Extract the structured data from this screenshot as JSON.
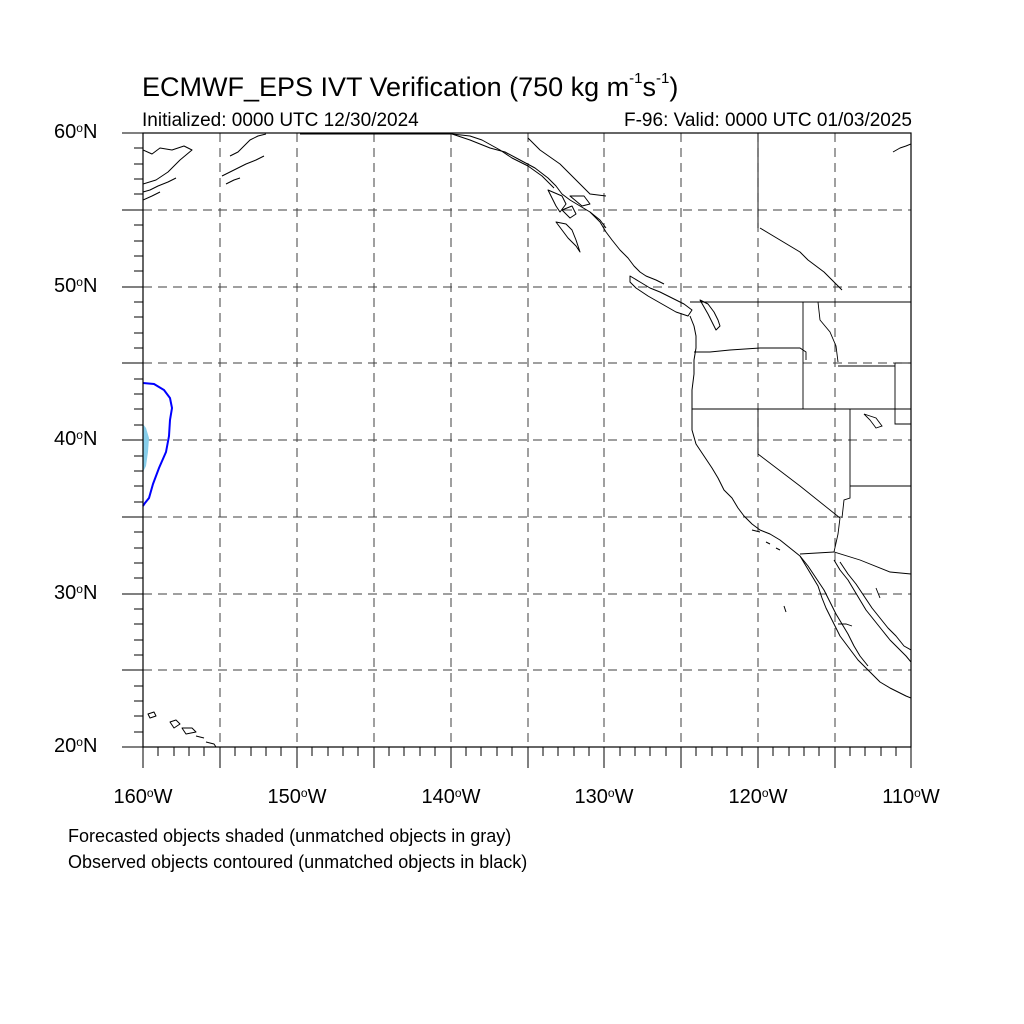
{
  "title": {
    "main": "ECMWF_EPS IVT Verification (750 kg m",
    "sup1": "-1",
    "mid": "s",
    "sup2": "-1",
    "end": ")"
  },
  "initialized": "Initialized: 0000 UTC 12/30/2024",
  "valid": "F-96: Valid: 0000 UTC 01/03/2025",
  "lat_labels": [
    {
      "num": "60",
      "deg": "o",
      "hem": "N"
    },
    {
      "num": "50",
      "deg": "o",
      "hem": "N"
    },
    {
      "num": "40",
      "deg": "o",
      "hem": "N"
    },
    {
      "num": "30",
      "deg": "o",
      "hem": "N"
    },
    {
      "num": "20",
      "deg": "o",
      "hem": "N"
    }
  ],
  "lon_labels": [
    {
      "num": "160",
      "deg": "o",
      "hem": "W"
    },
    {
      "num": "150",
      "deg": "o",
      "hem": "W"
    },
    {
      "num": "140",
      "deg": "o",
      "hem": "W"
    },
    {
      "num": "130",
      "deg": "o",
      "hem": "W"
    },
    {
      "num": "120",
      "deg": "o",
      "hem": "W"
    },
    {
      "num": "110",
      "deg": "o",
      "hem": "W"
    }
  ],
  "footnotes": {
    "line1": "Forecasted objects shaded (unmatched objects in gray)",
    "line2": "Observed objects contoured (unmatched objects in black)"
  },
  "colors": {
    "forecast_fill": "#87ceeb",
    "observed_contour": "#0000ff",
    "coastline": "#000000",
    "grid": "#000000"
  }
}
